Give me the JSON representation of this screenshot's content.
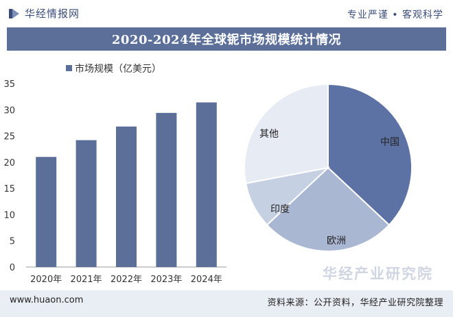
{
  "header": {
    "brand": "华经情报网",
    "slogan": "专业严谨 • 客观科学"
  },
  "title": "2020-2024年全球铌市场规模统计情况",
  "watermarks": {
    "main": "华经产业研究院"
  },
  "footer": {
    "url": "www.huaon.com",
    "source": "资料来源：公开资料，华经产业研究院整理"
  },
  "colors": {
    "brand_blue": "#3a4d7a",
    "title_band": "#5b6f99",
    "bar": "#5b6f99"
  },
  "chart_data": [
    {
      "type": "bar",
      "legend": "市场规模（亿美元）",
      "categories": [
        "2020年",
        "2021年",
        "2022年",
        "2023年",
        "2024年"
      ],
      "values": [
        21,
        24.2,
        26.8,
        29.4,
        31.4
      ],
      "yticks": [
        0,
        5,
        10,
        15,
        20,
        25,
        30,
        35
      ],
      "ylim": [
        0,
        35
      ],
      "color": "#5b6f99"
    },
    {
      "type": "pie",
      "slices": [
        {
          "label": "中国",
          "value": 37,
          "color": "#5d72a4"
        },
        {
          "label": "欧洲",
          "value": 26,
          "color": "#a9b7d3"
        },
        {
          "label": "印度",
          "value": 9,
          "color": "#c6d0e3"
        },
        {
          "label": "其他",
          "value": 28,
          "color": "#e7ebf3"
        }
      ]
    }
  ]
}
